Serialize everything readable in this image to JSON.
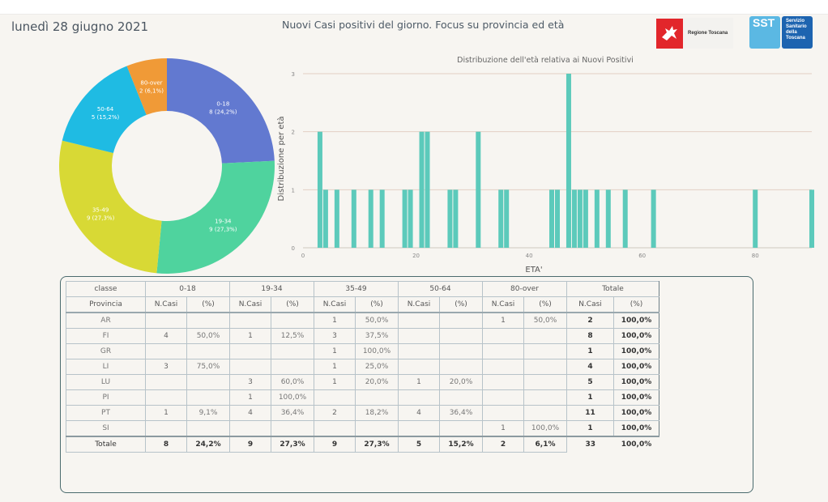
{
  "header": {
    "date": "lunedì 28 giugno 2021",
    "title": "Nuovi Casi positivi del giorno. Focus su provincia ed età",
    "logo_regione": "Regione Toscana",
    "logo_sst_short": "SST",
    "logo_sst_lines": [
      "Servizio",
      "Sanitario",
      "della",
      "Toscana"
    ]
  },
  "colors": {
    "0-18": "#6279d0",
    "19-34": "#4fd39e",
    "35-49": "#d8d935",
    "50-64": "#1fbbe3",
    "80-over": "#f09a37",
    "bar": "#5ccabb"
  },
  "chart_data": [
    {
      "type": "pie",
      "variant": "donut",
      "title": "",
      "categories": [
        "0-18",
        "19-34",
        "35-49",
        "50-64",
        "80-over"
      ],
      "values": [
        8,
        9,
        9,
        5,
        2
      ],
      "labels": [
        "8 (24,2%)",
        "9 (27,3%)",
        "9 (27,3%)",
        "5 (15,2%)",
        "2 (6,1%)"
      ],
      "start": "top",
      "direction": "clockwise"
    },
    {
      "type": "bar",
      "title": "Distribuzione dell'età relativa ai Nuovi Positivi",
      "xlabel": "ETA'",
      "ylabel": "Distribuzione per età",
      "xlim": [
        0,
        90
      ],
      "ylim": [
        0,
        3
      ],
      "xticks": [
        0,
        20,
        40,
        60,
        80
      ],
      "yticks": [
        0,
        1,
        2,
        3
      ],
      "grid": "horizontal",
      "x": [
        3,
        4,
        6,
        9,
        12,
        14,
        18,
        19,
        21,
        22,
        26,
        27,
        31,
        35,
        36,
        44,
        45,
        47,
        48,
        49,
        50,
        52,
        54,
        57,
        62,
        80,
        90
      ],
      "values": [
        2,
        1,
        1,
        1,
        1,
        1,
        1,
        1,
        2,
        2,
        1,
        1,
        2,
        1,
        1,
        1,
        1,
        3,
        1,
        1,
        1,
        1,
        1,
        1,
        1,
        1,
        1
      ]
    }
  ],
  "table": {
    "corner_top": "classe",
    "corner_bottom": "Provincia",
    "groups": [
      "0-18",
      "19-34",
      "35-49",
      "50-64",
      "80-over",
      "Totale"
    ],
    "sub_n": "N.Casi",
    "sub_p": "(%)",
    "rows": [
      {
        "prov": "AR",
        "cells": [
          "",
          "",
          "",
          "",
          "1",
          "50,0%",
          "",
          "",
          "1",
          "50,0%"
        ],
        "tot_n": "2",
        "tot_p": "100,0%"
      },
      {
        "prov": "FI",
        "cells": [
          "4",
          "50,0%",
          "1",
          "12,5%",
          "3",
          "37,5%",
          "",
          "",
          "",
          ""
        ],
        "tot_n": "8",
        "tot_p": "100,0%"
      },
      {
        "prov": "GR",
        "cells": [
          "",
          "",
          "",
          "",
          "1",
          "100,0%",
          "",
          "",
          "",
          ""
        ],
        "tot_n": "1",
        "tot_p": "100,0%"
      },
      {
        "prov": "LI",
        "cells": [
          "3",
          "75,0%",
          "",
          "",
          "1",
          "25,0%",
          "",
          "",
          "",
          ""
        ],
        "tot_n": "4",
        "tot_p": "100,0%"
      },
      {
        "prov": "LU",
        "cells": [
          "",
          "",
          "3",
          "60,0%",
          "1",
          "20,0%",
          "1",
          "20,0%",
          "",
          ""
        ],
        "tot_n": "5",
        "tot_p": "100,0%"
      },
      {
        "prov": "PI",
        "cells": [
          "",
          "",
          "1",
          "100,0%",
          "",
          "",
          "",
          "",
          "",
          ""
        ],
        "tot_n": "1",
        "tot_p": "100,0%"
      },
      {
        "prov": "PT",
        "cells": [
          "1",
          "9,1%",
          "4",
          "36,4%",
          "2",
          "18,2%",
          "4",
          "36,4%",
          "",
          ""
        ],
        "tot_n": "11",
        "tot_p": "100,0%"
      },
      {
        "prov": "SI",
        "cells": [
          "",
          "",
          "",
          "",
          "",
          "",
          "",
          "",
          "1",
          "100,0%"
        ],
        "tot_n": "1",
        "tot_p": "100,0%"
      }
    ],
    "total": {
      "prov": "Totale",
      "cells": [
        "8",
        "24,2%",
        "9",
        "27,3%",
        "9",
        "27,3%",
        "5",
        "15,2%",
        "2",
        "6,1%"
      ],
      "tot_n": "33",
      "tot_p": "100,0%"
    }
  }
}
